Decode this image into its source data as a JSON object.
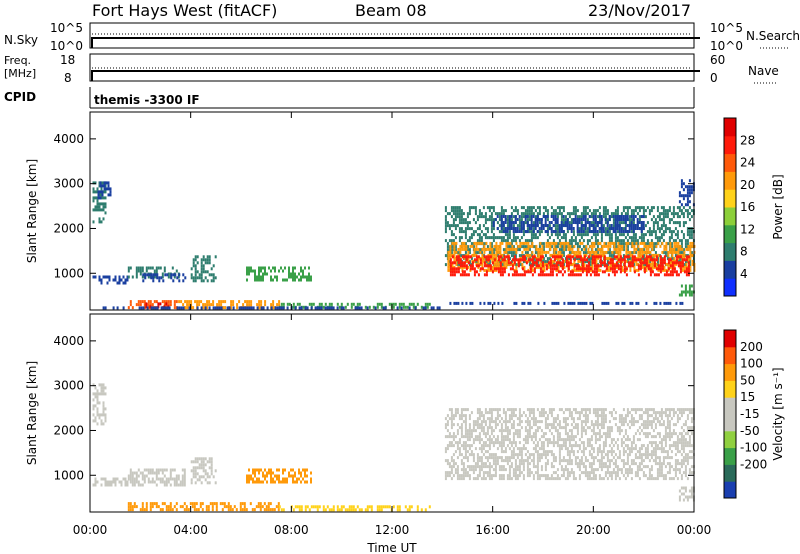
{
  "header": {
    "radar": "Fort Hays West (fitACF)",
    "beam": "Beam 08",
    "date": "23/Nov/2017"
  },
  "strips": {
    "nsky": {
      "label": "N.Sky",
      "tick_top": "10^5",
      "tick_bottom": "10^0"
    },
    "nsearch": {
      "label": "N.Search",
      "tick_top": "10^5",
      "tick_bottom": "10^0"
    },
    "freq": {
      "label_line1": "Freq.",
      "label_line2": "[MHz]",
      "tick_top": "18",
      "tick_bottom": "8"
    },
    "nave": {
      "label": "Nave",
      "tick_top": "60",
      "tick_bottom": "0"
    },
    "cpid": {
      "label": "CPID",
      "value": "themis -3300 IF"
    }
  },
  "chart_data": [
    {
      "type": "heatmap",
      "panel": "power",
      "ylabel": "Slant Range [km]",
      "xlabel": "",
      "x_ticks": [
        "00:00",
        "04:00",
        "08:00",
        "12:00",
        "16:00",
        "20:00",
        "00:00"
      ],
      "y_ticks": [
        "1000",
        "2000",
        "3000",
        "4000"
      ],
      "xlim_hours": [
        0,
        24
      ],
      "ylim_km": [
        180,
        4600
      ],
      "colorbar": {
        "label": "Power [dB]",
        "ticks": [
          "4",
          "8",
          "12",
          "16",
          "20",
          "24",
          "28"
        ],
        "colors": [
          "#1030ff",
          "#1a3fa0",
          "#2e7d6e",
          "#3aa048",
          "#8ccf3a",
          "#ffd21a",
          "#ff9a0a",
          "#ff5a0a",
          "#ff1a0a",
          "#e00000"
        ]
      },
      "regions": [
        {
          "t0": 0.1,
          "t1": 0.6,
          "r0": 2150,
          "r1": 3050,
          "color": "#2e7d6e"
        },
        {
          "t0": 0.3,
          "t1": 0.8,
          "r0": 2700,
          "r1": 3050,
          "color": "#1a3fa0"
        },
        {
          "t0": 0.1,
          "t1": 1.5,
          "r0": 800,
          "r1": 950,
          "color": "#1a3fa0"
        },
        {
          "t0": 1.5,
          "t1": 3.5,
          "r0": 920,
          "r1": 1150,
          "color": "#2e7d6e"
        },
        {
          "t0": 2.0,
          "t1": 3.8,
          "r0": 800,
          "r1": 1000,
          "color": "#1a3fa0"
        },
        {
          "t0": 4.0,
          "t1": 5.0,
          "r0": 850,
          "r1": 1400,
          "color": "#2e7d6e"
        },
        {
          "t0": 6.2,
          "t1": 8.8,
          "r0": 850,
          "r1": 1150,
          "color": "#3aa048"
        },
        {
          "t0": 1.5,
          "t1": 3.5,
          "r0": 250,
          "r1": 400,
          "color": "#ff5a0a"
        },
        {
          "t0": 2.2,
          "t1": 3.2,
          "r0": 250,
          "r1": 350,
          "color": "#e00000"
        },
        {
          "t0": 3.5,
          "t1": 7.5,
          "r0": 250,
          "r1": 400,
          "color": "#ff9a0a"
        },
        {
          "t0": 7.5,
          "t1": 13.5,
          "r0": 260,
          "r1": 340,
          "color": "#3aa048"
        },
        {
          "t0": 0.5,
          "t1": 14,
          "r0": 220,
          "r1": 260,
          "color": "#1a3fa0"
        },
        {
          "t0": 14.2,
          "t1": 23.5,
          "r0": 300,
          "r1": 360,
          "color": "#1a3fa0"
        },
        {
          "t0": 14.1,
          "t1": 24,
          "r0": 1200,
          "r1": 2500,
          "color": "#2e7d6e"
        },
        {
          "t0": 14.2,
          "t1": 24,
          "r0": 1050,
          "r1": 1700,
          "color": "#ff9a0a"
        },
        {
          "t0": 14.3,
          "t1": 23.8,
          "r0": 950,
          "r1": 1400,
          "color": "#ff1a0a"
        },
        {
          "t0": 16.0,
          "t1": 22.0,
          "r0": 1900,
          "r1": 2300,
          "color": "#1a3fa0"
        },
        {
          "t0": 23.4,
          "t1": 24,
          "r0": 2500,
          "r1": 3100,
          "color": "#1a3fa0"
        },
        {
          "t0": 23.4,
          "t1": 24,
          "r0": 500,
          "r1": 750,
          "color": "#3aa048"
        }
      ]
    },
    {
      "type": "heatmap",
      "panel": "velocity",
      "ylabel": "Slant Range [km]",
      "xlabel": "Time UT",
      "x_ticks": [
        "00:00",
        "04:00",
        "08:00",
        "12:00",
        "16:00",
        "20:00",
        "00:00"
      ],
      "y_ticks": [
        "1000",
        "2000",
        "3000",
        "4000"
      ],
      "xlim_hours": [
        0,
        24
      ],
      "ylim_km": [
        180,
        4600
      ],
      "colorbar": {
        "label": "Velocity [m s⁻¹]",
        "ticks": [
          "200",
          "100",
          "50",
          "15",
          "-15",
          "-50",
          "-100",
          "-200"
        ],
        "colors": [
          "#1a3fb0",
          "#2b6b5a",
          "#3aa048",
          "#90d040",
          "#c8c8c0",
          "#c8c8c0",
          "#ffd21a",
          "#ff9a0a",
          "#ff5a0a",
          "#e00000"
        ]
      },
      "regions": [
        {
          "t0": 0.1,
          "t1": 0.6,
          "r0": 2150,
          "r1": 3050,
          "color": "#c8c8c0"
        },
        {
          "t0": 0.1,
          "t1": 1.5,
          "r0": 800,
          "r1": 950,
          "color": "#c8c8c0"
        },
        {
          "t0": 1.5,
          "t1": 3.8,
          "r0": 800,
          "r1": 1150,
          "color": "#c8c8c0"
        },
        {
          "t0": 4.0,
          "t1": 5.0,
          "r0": 850,
          "r1": 1400,
          "color": "#c8c8c0"
        },
        {
          "t0": 6.2,
          "t1": 8.8,
          "r0": 850,
          "r1": 1150,
          "color": "#ff9a0a"
        },
        {
          "t0": 1.5,
          "t1": 7.5,
          "r0": 250,
          "r1": 400,
          "color": "#ff9a0a"
        },
        {
          "t0": 7.5,
          "t1": 13.5,
          "r0": 230,
          "r1": 330,
          "color": "#ffd21a"
        },
        {
          "t0": 14.1,
          "t1": 24,
          "r0": 900,
          "r1": 2500,
          "color": "#c8c8c0"
        },
        {
          "t0": 23.4,
          "t1": 24,
          "r0": 450,
          "r1": 750,
          "color": "#c8c8c0"
        }
      ]
    }
  ],
  "axes": {
    "xlabel": "Time UT"
  }
}
